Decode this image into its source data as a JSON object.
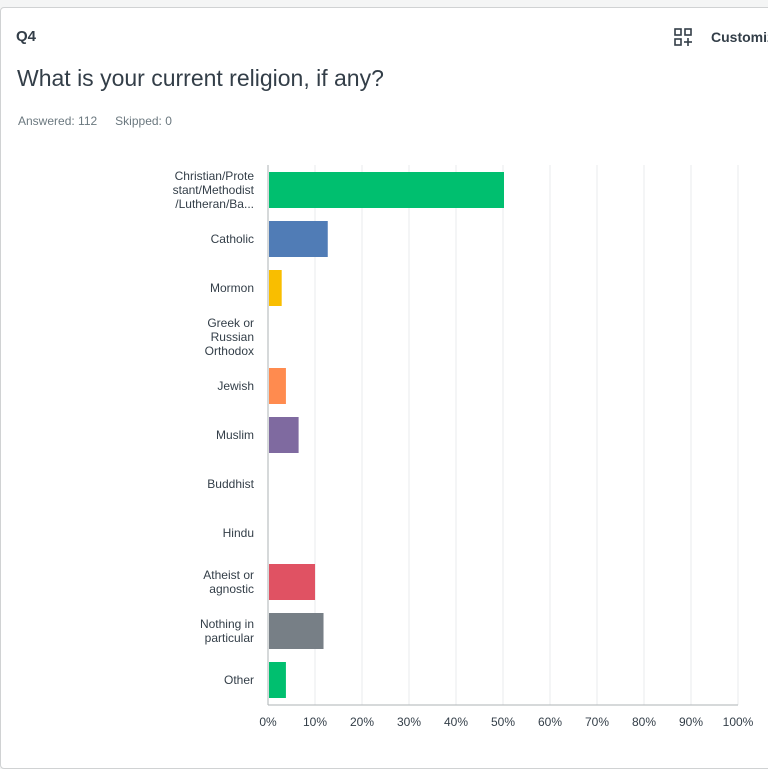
{
  "question": {
    "number": "Q4",
    "title": "What is your current religion, if any?",
    "answered": "Answered: 112",
    "skipped": "Skipped: 0"
  },
  "toolbar": {
    "customize_label": "Customize",
    "customize_icon": "grid-plus-icon"
  },
  "chart_data": {
    "type": "bar",
    "orientation": "horizontal",
    "categories": [
      [
        "Christian/Prote",
        "stant/Methodist",
        "/Lutheran/Ba..."
      ],
      [
        "Catholic"
      ],
      [
        "Mormon"
      ],
      [
        "Greek or",
        "Russian",
        "Orthodox"
      ],
      [
        "Jewish"
      ],
      [
        "Muslim"
      ],
      [
        "Buddhist"
      ],
      [
        "Hindu"
      ],
      [
        "Atheist or",
        "agnostic"
      ],
      [
        "Nothing in",
        "particular"
      ],
      [
        "Other"
      ]
    ],
    "values": [
      50,
      12.5,
      2.7,
      0,
      3.6,
      6.3,
      0,
      0,
      9.8,
      11.6,
      3.6
    ],
    "colors": [
      "#00bf6f",
      "#507cb6",
      "#f9be00",
      "#6bc8cd",
      "#ff8b4f",
      "#7f6aa0",
      "#007880",
      "#96a61c",
      "#e05263",
      "#777f86",
      "#00bf6f"
    ],
    "xlim": [
      0,
      100
    ],
    "xticks": [
      "0%",
      "10%",
      "20%",
      "30%",
      "40%",
      "50%",
      "60%",
      "70%",
      "80%",
      "90%",
      "100%"
    ],
    "grid": true
  }
}
